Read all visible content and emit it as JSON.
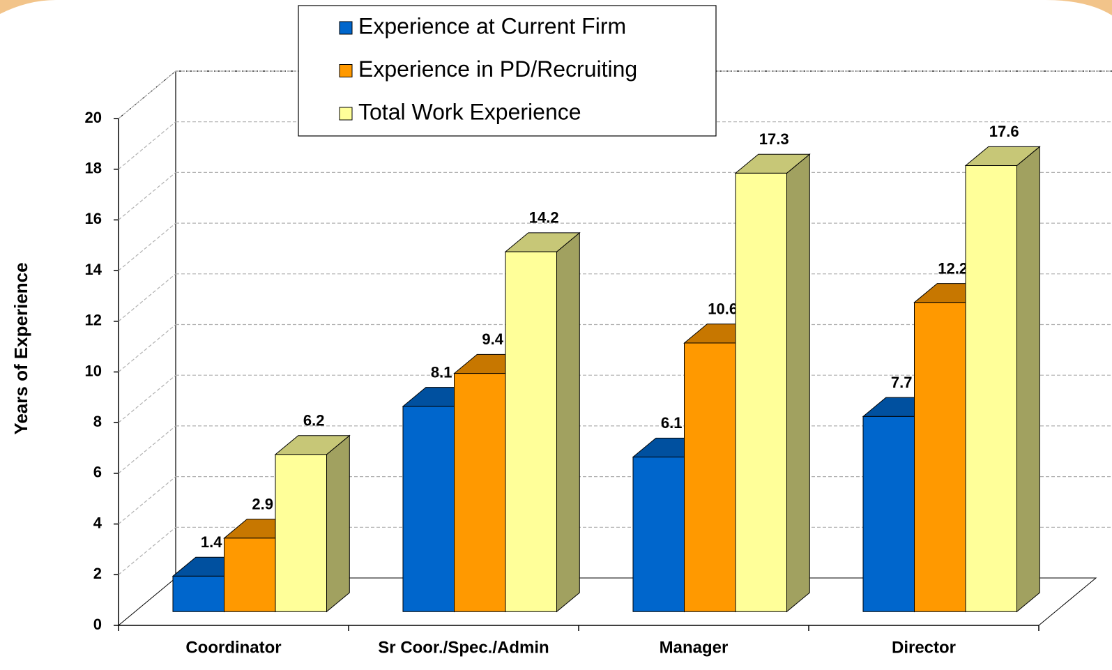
{
  "chart_data": {
    "type": "bar3d",
    "y_label": "Years of Experience",
    "categories": [
      "Coordinator",
      "Sr Coor./Spec./Admin",
      "Manager",
      "Director"
    ],
    "series": [
      {
        "name": "Experience at Current Firm",
        "color": "#0066cc",
        "values": [
          1.4,
          8.1,
          6.1,
          7.7
        ]
      },
      {
        "name": "Experience in PD/Recruiting",
        "color": "#ff9900",
        "values": [
          2.9,
          9.4,
          10.6,
          12.2
        ]
      },
      {
        "name": "Total Work Experience",
        "color": "#ffff99",
        "values": [
          6.2,
          14.2,
          17.3,
          17.6
        ]
      }
    ],
    "ylim": [
      0,
      20
    ],
    "yticks": [
      0,
      2,
      4,
      6,
      8,
      10,
      12,
      14,
      16,
      18,
      20
    ],
    "grid": true,
    "legend": "top"
  }
}
